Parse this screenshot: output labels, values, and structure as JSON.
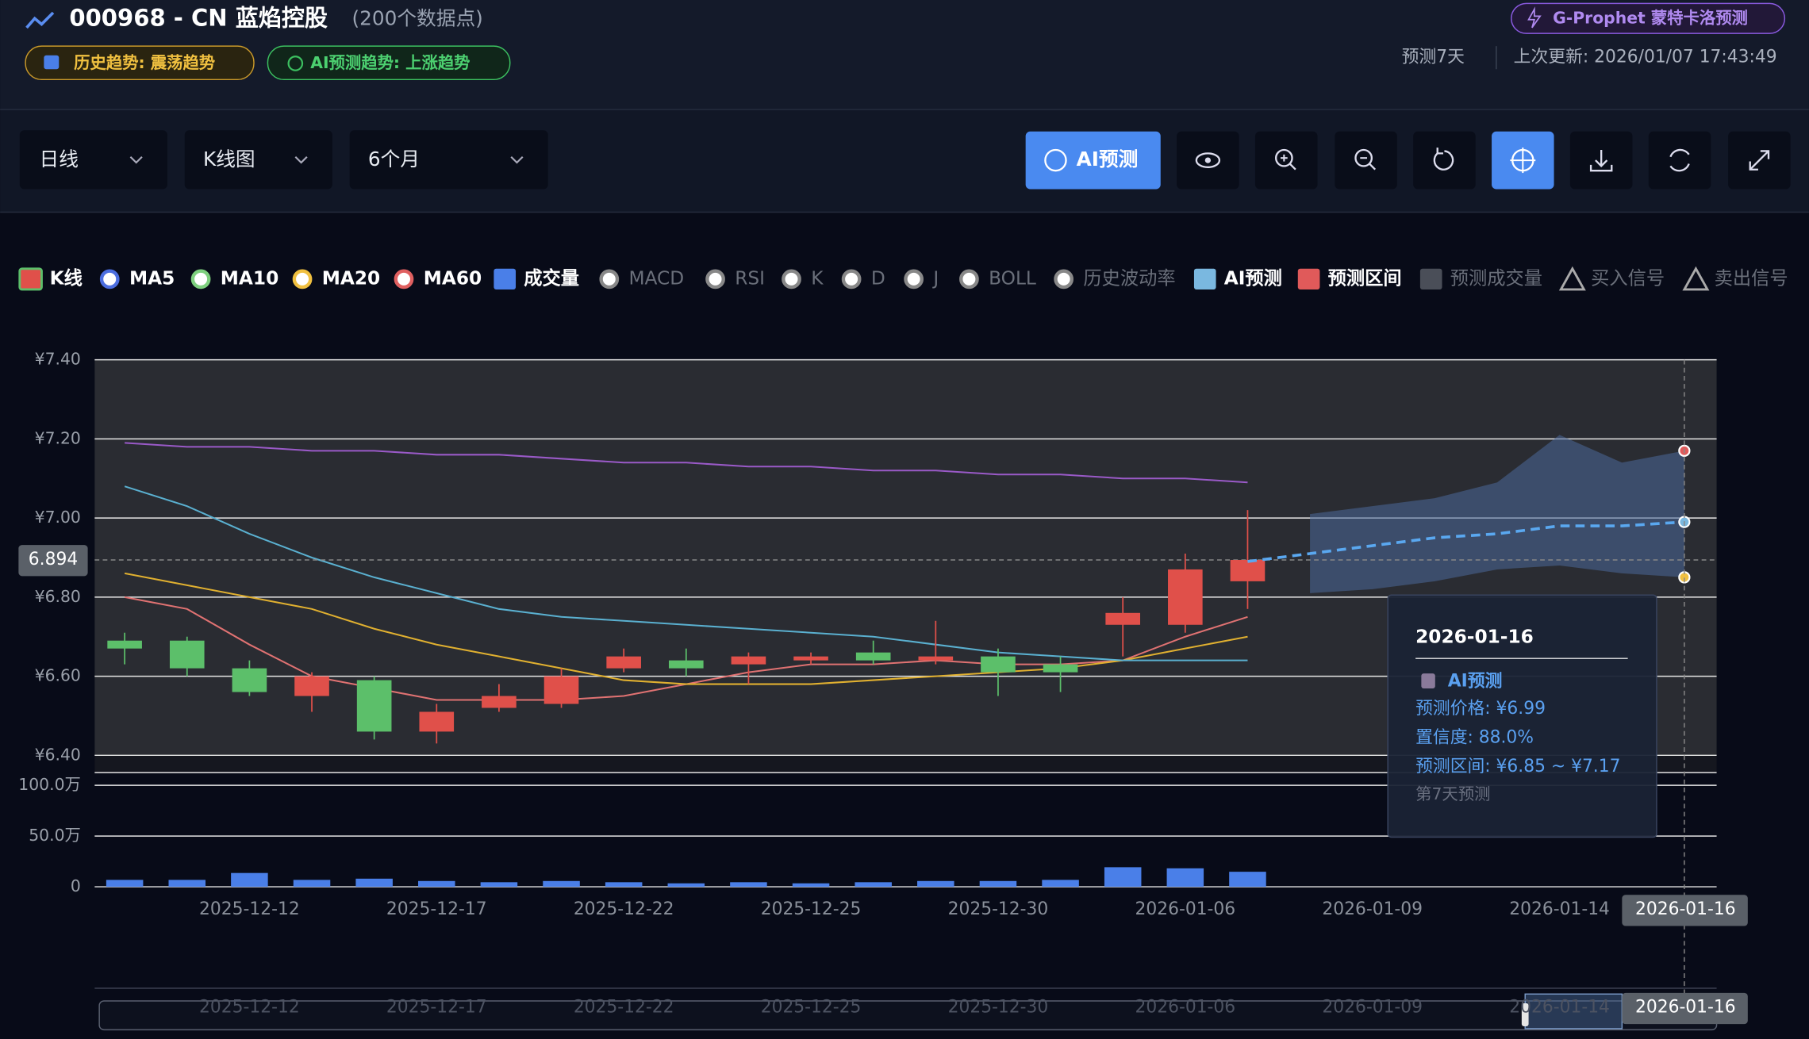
{
  "header": {
    "title": "000968 - CN 蓝焰控股",
    "subtitle": "(200个数据点)",
    "badges": [
      "历史趋势: 震荡趋势",
      "AI预测趋势: 上涨趋势"
    ],
    "prophet": "G-Prophet 蒙特卡洛预测",
    "forecast_days": "预测7天",
    "updated": "上次更新: 2026/01/07 17:43:49"
  },
  "toolbar": {
    "period": "日线",
    "chart_type": "K线图",
    "range": "6个月",
    "ai_button": "AI预测"
  },
  "chart_data": {
    "type": "candlestick",
    "name": "K线",
    "up_color": "#e0504a",
    "down_color": "#5cbf6a",
    "categories": [
      null,
      null,
      "2025-12-12",
      null,
      null,
      "2025-12-17",
      null,
      null,
      "2025-12-22",
      null,
      null,
      "2025-12-25",
      null,
      null,
      "2025-12-30",
      null,
      null,
      "2026-01-06",
      null,
      null,
      "2026-01-09",
      null,
      null,
      "2026-01-14",
      null,
      "2026-01-16"
    ],
    "open": [
      6.69,
      6.69,
      6.62,
      6.55,
      6.59,
      6.46,
      6.52,
      6.53,
      6.62,
      6.64,
      6.63,
      6.64,
      6.66,
      6.64,
      6.65,
      6.63,
      6.73,
      6.73,
      6.84,
      null,
      null,
      null,
      null,
      null,
      null,
      null
    ],
    "close": [
      6.67,
      6.62,
      6.56,
      6.6,
      6.46,
      6.51,
      6.55,
      6.6,
      6.65,
      6.62,
      6.65,
      6.65,
      6.64,
      6.65,
      6.61,
      6.61,
      6.76,
      6.87,
      6.894,
      null,
      null,
      null,
      null,
      null,
      null,
      null
    ],
    "high": [
      6.71,
      6.7,
      6.64,
      6.61,
      6.6,
      6.53,
      6.58,
      6.62,
      6.67,
      6.67,
      6.66,
      6.66,
      6.69,
      6.74,
      6.67,
      6.65,
      6.8,
      6.91,
      7.02,
      null,
      null,
      null,
      null,
      null,
      null,
      null
    ],
    "low": [
      6.63,
      6.6,
      6.55,
      6.51,
      6.44,
      6.43,
      6.51,
      6.52,
      6.61,
      6.6,
      6.58,
      6.63,
      6.63,
      6.63,
      6.55,
      6.56,
      6.65,
      6.71,
      6.77,
      null,
      null,
      null,
      null,
      null,
      null,
      null
    ],
    "ylim": [
      6.4,
      7.4
    ],
    "yticks": [
      {
        "value": 6.4,
        "label": "¥6.40"
      },
      {
        "value": 6.6,
        "label": "¥6.60"
      },
      {
        "value": 6.8,
        "label": "¥6.80"
      },
      {
        "value": 7.0,
        "label": "¥7.00"
      },
      {
        "value": 7.2,
        "label": "¥7.20"
      },
      {
        "value": 7.4,
        "label": "¥7.40"
      }
    ],
    "grid": true,
    "current_price": 6.894,
    "ma_series": [
      {
        "name": "MA5",
        "color": "#e07272",
        "icon_color": "#4c6ee0",
        "values": [
          6.8,
          6.77,
          6.68,
          6.6,
          6.57,
          6.54,
          6.54,
          6.54,
          6.55,
          6.58,
          6.61,
          6.63,
          6.63,
          6.64,
          6.63,
          6.63,
          6.64,
          6.7,
          6.75,
          null,
          null,
          null,
          null,
          null,
          null,
          null
        ]
      },
      {
        "name": "MA10",
        "color": "#e0b030",
        "icon_color": "#7ed07e",
        "values": [
          6.86,
          6.83,
          6.8,
          6.77,
          6.72,
          6.68,
          6.65,
          6.62,
          6.59,
          6.58,
          6.58,
          6.58,
          6.59,
          6.6,
          6.61,
          6.62,
          6.64,
          6.67,
          6.7,
          null,
          null,
          null,
          null,
          null,
          null,
          null
        ]
      },
      {
        "name": "MA20",
        "color": "#5ab0d0",
        "icon_color": "#f0c040",
        "values": [
          7.08,
          7.03,
          6.96,
          6.9,
          6.85,
          6.81,
          6.77,
          6.75,
          6.74,
          6.73,
          6.72,
          6.71,
          6.7,
          6.68,
          6.66,
          6.65,
          6.64,
          6.64,
          6.64,
          null,
          null,
          null,
          null,
          null,
          null,
          null
        ]
      },
      {
        "name": "MA60",
        "color": "#9a5ac8",
        "icon_color": "#e06060",
        "values": [
          7.19,
          7.18,
          7.18,
          7.17,
          7.17,
          7.16,
          7.16,
          7.15,
          7.14,
          7.14,
          7.13,
          7.13,
          7.12,
          7.12,
          7.11,
          7.11,
          7.1,
          7.1,
          7.09,
          null,
          null,
          null,
          null,
          null,
          null,
          null
        ]
      }
    ],
    "volume": {
      "name": "成交量",
      "color": "#4a7fe8",
      "ylim": [
        0,
        1000000
      ],
      "yticks": [
        0,
        {
          "value": 500000,
          "label": "50.0万"
        },
        {
          "value": 1000000,
          "label": "100.0万"
        }
      ],
      "values": [
        68000,
        68000,
        136000,
        68000,
        80000,
        57000,
        45000,
        57000,
        45000,
        34000,
        45000,
        34000,
        45000,
        57000,
        57000,
        68000,
        193000,
        182000,
        148000,
        null,
        null,
        null,
        null,
        null,
        null,
        null
      ]
    },
    "forecast": {
      "name": "AI预测",
      "color": "#5aa8f0",
      "icon_color": "#7ab8e0",
      "values": [
        null,
        null,
        null,
        null,
        null,
        null,
        null,
        null,
        null,
        null,
        null,
        null,
        null,
        null,
        null,
        null,
        null,
        null,
        6.89,
        6.91,
        6.93,
        6.95,
        6.96,
        6.98,
        6.98,
        6.99
      ]
    },
    "band": {
      "name": "预测区间",
      "color": "#4a6a9a",
      "icon_color": "#e05a5a",
      "upper": [
        null,
        null,
        null,
        null,
        null,
        null,
        null,
        null,
        null,
        null,
        null,
        null,
        null,
        null,
        null,
        null,
        null,
        null,
        null,
        7.01,
        7.03,
        7.05,
        7.09,
        7.21,
        7.14,
        7.17
      ],
      "lower": [
        null,
        null,
        null,
        null,
        null,
        null,
        null,
        null,
        null,
        null,
        null,
        null,
        null,
        null,
        null,
        null,
        null,
        null,
        null,
        6.81,
        6.82,
        6.84,
        6.87,
        6.88,
        6.86,
        6.85
      ]
    },
    "legend_extra": [
      "MACD",
      "RSI",
      "K",
      "D",
      "J",
      "BOLL",
      "历史波动率",
      "预测成交量",
      "买入信号",
      "卖出信号"
    ]
  },
  "tooltip": {
    "date": "2026-01-16",
    "title": "AI预测",
    "price": "预测价格: ¥6.99",
    "confidence": "置信度: 88.0%",
    "range": "预测区间: ¥6.85 ~ ¥7.17",
    "day": "第7天预测"
  }
}
